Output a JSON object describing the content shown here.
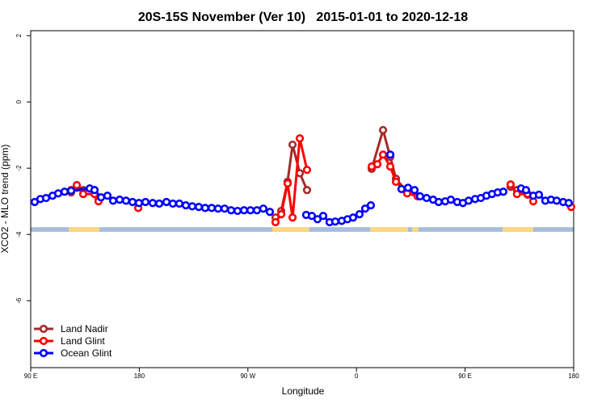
{
  "chart_data": {
    "type": "line",
    "title": "20S-15S November (Ver 10)   2015-01-01 to 2020-12-18",
    "x_label": "Longitude",
    "y_label": "XCO2 - MLO trend (ppm)",
    "xlim": [
      90,
      540
    ],
    "ylim": [
      -8.02,
      2.15
    ],
    "xticks": [
      {
        "value": 90,
        "label": "90 E"
      },
      180,
      {
        "value": 270,
        "label": "90 W"
      },
      {
        "value": 360,
        "label": "0"
      },
      {
        "value": 450,
        "label": "90 E"
      },
      {
        "value": 540,
        "label": "180"
      }
    ],
    "yticks": [
      2,
      0,
      -2,
      -4,
      -6
    ],
    "legend": "bottom-left",
    "land_mask": {
      "ylim": [
        -3.92,
        -3.78
      ],
      "ocean_color": "#a6bddb",
      "land_color": "#fdd882",
      "land_ranges": [
        [
          121.5,
          146.9
        ],
        [
          290.2,
          321.0
        ],
        [
          371.3,
          402.7
        ],
        [
          406.1,
          411.4
        ],
        [
          481.1,
          506.5
        ]
      ]
    },
    "series": [
      {
        "name": "Land Nadir",
        "color": "#a52a2a",
        "x": [
          123.5,
          128.2,
          133.5,
          142.9,
          146.2,
          null,
          292.9,
          297.6,
          302.9,
          307.0,
          313.0,
          319.0,
          null,
          372.6,
          382.0,
          388.0,
          392.7,
          402.0,
          null,
          487.7,
          493.0,
          501.8
        ],
        "values": [
          -2.73,
          -2.59,
          -2.66,
          -2.66,
          -2.9,
          null,
          -3.49,
          -3.29,
          -2.41,
          -1.29,
          -2.15,
          -2.66,
          null,
          -2.02,
          -0.85,
          -1.66,
          -2.32,
          -2.71,
          null,
          -2.56,
          -2.66,
          -2.8
        ]
      },
      {
        "name": "Land Glint",
        "color": "#ff0000",
        "x": [
          123.5,
          128.2,
          133.5,
          142.9,
          146.2,
          null,
          179.1,
          null,
          292.9,
          297.6,
          302.9,
          307.0,
          313.0,
          319.0,
          null,
          372.6,
          377.3,
          382.0,
          388.0,
          392.7,
          402.0,
          410.7,
          null,
          487.7,
          493.0,
          501.8,
          506.5,
          null,
          537.9
        ],
        "values": [
          -2.66,
          -2.51,
          -2.78,
          -2.78,
          -3.0,
          null,
          -3.2,
          null,
          -3.63,
          -3.39,
          -2.46,
          -3.49,
          -1.1,
          -2.05,
          null,
          -1.95,
          -1.88,
          -1.59,
          -1.95,
          -2.41,
          -2.76,
          -2.85,
          null,
          -2.49,
          -2.78,
          -2.78,
          -3.0,
          null,
          -3.17
        ]
      },
      {
        "name": "Ocean Glint",
        "color": "#0000ff",
        "x": [
          93.3,
          98.0,
          102.7,
          108.1,
          112.8,
          118.1,
          123.5,
          138.9,
          142.9,
          148.3,
          153.6,
          158.3,
          163.7,
          169.0,
          174.4,
          179.7,
          185.1,
          191.1,
          196.5,
          202.5,
          207.8,
          213.2,
          218.6,
          223.9,
          229.3,
          234.6,
          240.0,
          245.3,
          250.7,
          256.1,
          261.4,
          266.8,
          272.1,
          277.5,
          282.8,
          288.2,
          null,
          318.3,
          323.0,
          327.7,
          332.4,
          337.7,
          342.4,
          347.8,
          352.5,
          357.2,
          362.5,
          367.2,
          371.9,
          null,
          388.0,
          null,
          397.3,
          402.7,
          408.1,
          412.7,
          418.1,
          423.5,
          428.1,
          433.5,
          438.2,
          443.5,
          448.2,
          452.9,
          458.3,
          463.0,
          467.7,
          472.3,
          477.0,
          481.7,
          null,
          496.4,
          500.5,
          506.5,
          511.2,
          516.5,
          521.2,
          525.9,
          531.3,
          535.9
        ],
        "values": [
          -3.02,
          -2.93,
          -2.9,
          -2.83,
          -2.76,
          -2.71,
          -2.68,
          -2.61,
          -2.66,
          -2.88,
          -2.83,
          -2.98,
          -2.95,
          -2.98,
          -3.02,
          -3.05,
          -3.02,
          -3.05,
          -3.07,
          -3.02,
          -3.07,
          -3.07,
          -3.12,
          -3.15,
          -3.17,
          -3.2,
          -3.2,
          -3.22,
          -3.22,
          -3.27,
          -3.29,
          -3.27,
          -3.27,
          -3.27,
          -3.22,
          -3.32,
          null,
          -3.41,
          -3.44,
          -3.54,
          -3.44,
          -3.63,
          -3.61,
          -3.59,
          -3.54,
          -3.49,
          -3.39,
          -3.22,
          -3.12,
          null,
          -1.59,
          null,
          -2.63,
          -2.59,
          -2.66,
          -2.85,
          -2.9,
          -2.95,
          -3.02,
          -3.0,
          -2.95,
          -3.02,
          -3.05,
          -2.98,
          -2.93,
          -2.9,
          -2.83,
          -2.78,
          -2.73,
          -2.71,
          null,
          -2.61,
          -2.66,
          -2.83,
          -2.8,
          -2.98,
          -2.95,
          -2.98,
          -3.02,
          -3.05
        ]
      }
    ]
  }
}
